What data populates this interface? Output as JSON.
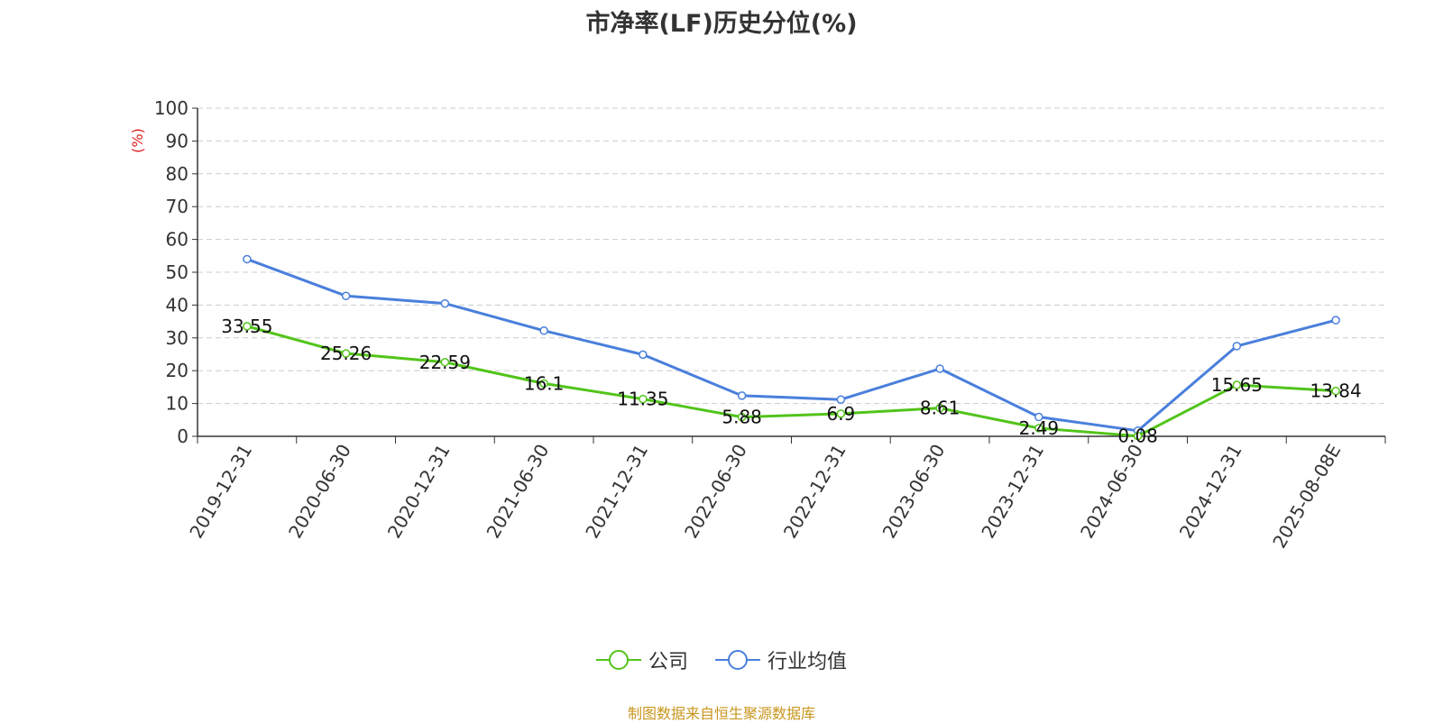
{
  "chart_data": {
    "type": "line",
    "title": "市净率(LF)历史分位(%)",
    "ylabel": "(%)",
    "ylim": [
      0,
      100
    ],
    "yticks": [
      0,
      10,
      20,
      30,
      40,
      50,
      60,
      70,
      80,
      90,
      100
    ],
    "categories": [
      "2019-12-31",
      "2020-06-30",
      "2020-12-31",
      "2021-06-30",
      "2021-12-31",
      "2022-06-30",
      "2022-12-31",
      "2023-06-30",
      "2023-12-31",
      "2024-06-30",
      "2024-12-31",
      "2025-08-08E"
    ],
    "series": [
      {
        "name": "公司",
        "color": "#52c41a",
        "values": [
          33.55,
          25.26,
          22.59,
          16.1,
          11.35,
          5.88,
          6.9,
          8.61,
          2.49,
          0.08,
          15.65,
          13.84
        ],
        "labels": [
          "33.55",
          "25.26",
          "22.59",
          "16.1",
          "11.35",
          "5.88",
          "6.9",
          "8.61",
          "2.49",
          "0.08",
          "15.65",
          "13.84"
        ]
      },
      {
        "name": "行业均值",
        "color": "#4a7fdc",
        "values": [
          54,
          42.8,
          40.5,
          32.2,
          24.9,
          12.4,
          11.2,
          20.6,
          5.9,
          1.7,
          27.5,
          35.4
        ]
      }
    ],
    "grid": true,
    "legend_position": "bottom-center"
  },
  "source": "制图数据来自恒生聚源数据库"
}
